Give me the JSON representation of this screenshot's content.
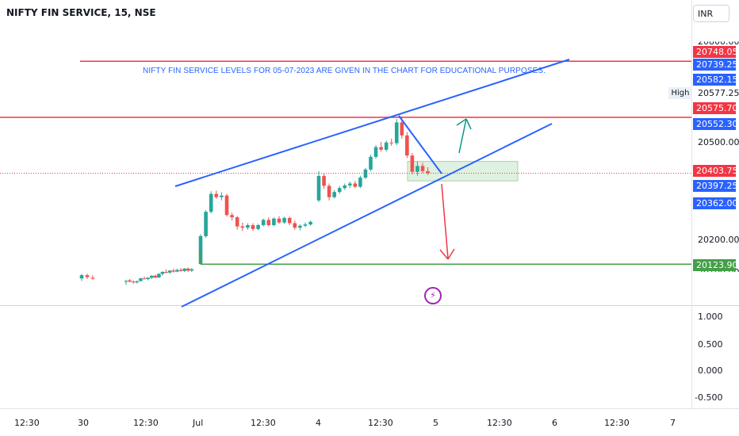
{
  "header": {
    "symbol_title": "NIFTY FIN SERVICE, 15, NSE",
    "currency": "INR"
  },
  "annotation_text": "NIFTY FIN SERVICE LEVELS FOR 05-07-2023 ARE GIVEN IN THE CHART FOR EDUCATIONAL PURPOSES.",
  "price_axis": {
    "partial_top_label": "20800.00",
    "labels": [
      "20500.00",
      "20200.00",
      "20100.00"
    ]
  },
  "price_tags": [
    {
      "value": "20748.05",
      "color": "#f23645"
    },
    {
      "value": "20739.25",
      "color": "#2962ff"
    },
    {
      "value": "20582.15",
      "color": "#2962ff"
    },
    {
      "value": "20575.70",
      "color": "#f23645"
    },
    {
      "value": "20552.30",
      "color": "#2962ff"
    },
    {
      "value": "20403.75",
      "color": "#f23645"
    },
    {
      "value": "20397.25",
      "color": "#2962ff"
    },
    {
      "value": "20362.00",
      "color": "#2962ff"
    },
    {
      "value": "20123.90",
      "color": "#43a047"
    }
  ],
  "high_marker": {
    "label": "High",
    "value": "20577.25"
  },
  "indicator_axis": {
    "labels": [
      "1.000",
      "0.500",
      "0.000",
      "-0.500"
    ]
  },
  "time_axis": {
    "labels": [
      "12:30",
      "30",
      "12:30",
      "Jul",
      "12:30",
      "4",
      "12:30",
      "5",
      "12:30",
      "6",
      "12:30",
      "7"
    ]
  },
  "event_icon": "lightning-icon",
  "colors": {
    "up": "#26a69a",
    "down": "#ef5350",
    "trendline": "#2962ff",
    "resistance": "#f23645",
    "support": "#43a047"
  },
  "chart_data": {
    "type": "candlestick",
    "title": "NIFTY FIN SERVICE, 15, NSE",
    "ylim": [
      20095,
      20805
    ],
    "horizontal_levels": [
      {
        "name": "resistance-top",
        "value": 20748.05
      },
      {
        "name": "resistance-high",
        "value": 20575.7
      },
      {
        "name": "support",
        "value": 20123.9
      }
    ],
    "current_price": 20403.75,
    "candles": [
      {
        "o": 20080,
        "h": 20094,
        "l": 20072,
        "c": 20090
      },
      {
        "o": 20090,
        "h": 20094,
        "l": 20078,
        "c": 20084
      },
      {
        "o": 20082,
        "h": 20090,
        "l": 20076,
        "c": 20079
      },
      {
        "o": 20070,
        "h": 20076,
        "l": 20060,
        "c": 20072
      },
      {
        "o": 20074,
        "h": 20078,
        "l": 20068,
        "c": 20070
      },
      {
        "o": 20070,
        "h": 20074,
        "l": 20064,
        "c": 20068
      },
      {
        "o": 20068,
        "h": 20074,
        "l": 20064,
        "c": 20071
      },
      {
        "o": 20072,
        "h": 20082,
        "l": 20070,
        "c": 20080
      },
      {
        "o": 20080,
        "h": 20086,
        "l": 20077,
        "c": 20078
      },
      {
        "o": 20078,
        "h": 20084,
        "l": 20074,
        "c": 20082
      },
      {
        "o": 20082,
        "h": 20090,
        "l": 20078,
        "c": 20088
      },
      {
        "o": 20088,
        "h": 20092,
        "l": 20080,
        "c": 20083
      },
      {
        "o": 20083,
        "h": 20096,
        "l": 20081,
        "c": 20094
      },
      {
        "o": 20094,
        "h": 20102,
        "l": 20088,
        "c": 20100
      },
      {
        "o": 20100,
        "h": 20108,
        "l": 20096,
        "c": 20098
      },
      {
        "o": 20098,
        "h": 20106,
        "l": 20094,
        "c": 20104
      },
      {
        "o": 20104,
        "h": 20110,
        "l": 20098,
        "c": 20101
      },
      {
        "o": 20101,
        "h": 20110,
        "l": 20099,
        "c": 20106
      },
      {
        "o": 20106,
        "h": 20112,
        "l": 20100,
        "c": 20103
      },
      {
        "o": 20103,
        "h": 20112,
        "l": 20100,
        "c": 20110
      },
      {
        "o": 20110,
        "h": 20114,
        "l": 20100,
        "c": 20104
      },
      {
        "o": 20104,
        "h": 20112,
        "l": 20100,
        "c": 20108
      },
      {
        "o": 20124,
        "h": 20216,
        "l": 20124,
        "c": 20210
      },
      {
        "o": 20210,
        "h": 20290,
        "l": 20205,
        "c": 20285
      },
      {
        "o": 20285,
        "h": 20348,
        "l": 20280,
        "c": 20340
      },
      {
        "o": 20340,
        "h": 20350,
        "l": 20325,
        "c": 20330
      },
      {
        "o": 20330,
        "h": 20345,
        "l": 20320,
        "c": 20335
      },
      {
        "o": 20335,
        "h": 20340,
        "l": 20270,
        "c": 20275
      },
      {
        "o": 20275,
        "h": 20282,
        "l": 20258,
        "c": 20268
      },
      {
        "o": 20268,
        "h": 20272,
        "l": 20230,
        "c": 20240
      },
      {
        "o": 20240,
        "h": 20252,
        "l": 20226,
        "c": 20236
      },
      {
        "o": 20236,
        "h": 20250,
        "l": 20230,
        "c": 20244
      },
      {
        "o": 20244,
        "h": 20250,
        "l": 20226,
        "c": 20232
      },
      {
        "o": 20232,
        "h": 20248,
        "l": 20228,
        "c": 20244
      },
      {
        "o": 20244,
        "h": 20264,
        "l": 20240,
        "c": 20260
      },
      {
        "o": 20260,
        "h": 20268,
        "l": 20240,
        "c": 20244
      },
      {
        "o": 20244,
        "h": 20268,
        "l": 20240,
        "c": 20264
      },
      {
        "o": 20264,
        "h": 20272,
        "l": 20248,
        "c": 20252
      },
      {
        "o": 20252,
        "h": 20270,
        "l": 20248,
        "c": 20266
      },
      {
        "o": 20266,
        "h": 20270,
        "l": 20244,
        "c": 20250
      },
      {
        "o": 20250,
        "h": 20258,
        "l": 20230,
        "c": 20236
      },
      {
        "o": 20236,
        "h": 20246,
        "l": 20228,
        "c": 20242
      },
      {
        "o": 20242,
        "h": 20252,
        "l": 20238,
        "c": 20246
      },
      {
        "o": 20246,
        "h": 20258,
        "l": 20242,
        "c": 20254
      },
      {
        "o": 20320,
        "h": 20410,
        "l": 20315,
        "c": 20395
      },
      {
        "o": 20395,
        "h": 20405,
        "l": 20355,
        "c": 20365
      },
      {
        "o": 20365,
        "h": 20372,
        "l": 20320,
        "c": 20330
      },
      {
        "o": 20330,
        "h": 20352,
        "l": 20326,
        "c": 20346
      },
      {
        "o": 20346,
        "h": 20364,
        "l": 20340,
        "c": 20358
      },
      {
        "o": 20358,
        "h": 20372,
        "l": 20352,
        "c": 20366
      },
      {
        "o": 20366,
        "h": 20378,
        "l": 20358,
        "c": 20372
      },
      {
        "o": 20372,
        "h": 20380,
        "l": 20358,
        "c": 20362
      },
      {
        "o": 20362,
        "h": 20396,
        "l": 20358,
        "c": 20390
      },
      {
        "o": 20390,
        "h": 20420,
        "l": 20386,
        "c": 20415
      },
      {
        "o": 20415,
        "h": 20460,
        "l": 20410,
        "c": 20454
      },
      {
        "o": 20454,
        "h": 20490,
        "l": 20448,
        "c": 20484
      },
      {
        "o": 20484,
        "h": 20500,
        "l": 20470,
        "c": 20476
      },
      {
        "o": 20476,
        "h": 20504,
        "l": 20470,
        "c": 20498
      },
      {
        "o": 20498,
        "h": 20510,
        "l": 20488,
        "c": 20496
      },
      {
        "o": 20496,
        "h": 20570,
        "l": 20490,
        "c": 20560
      },
      {
        "o": 20560,
        "h": 20577.25,
        "l": 20510,
        "c": 20520
      },
      {
        "o": 20520,
        "h": 20530,
        "l": 20450,
        "c": 20458
      },
      {
        "o": 20458,
        "h": 20466,
        "l": 20400,
        "c": 20408
      },
      {
        "o": 20408,
        "h": 20440,
        "l": 20396,
        "c": 20426
      },
      {
        "o": 20426,
        "h": 20436,
        "l": 20404,
        "c": 20410
      },
      {
        "o": 20410,
        "h": 20422,
        "l": 20398,
        "c": 20404
      }
    ]
  }
}
